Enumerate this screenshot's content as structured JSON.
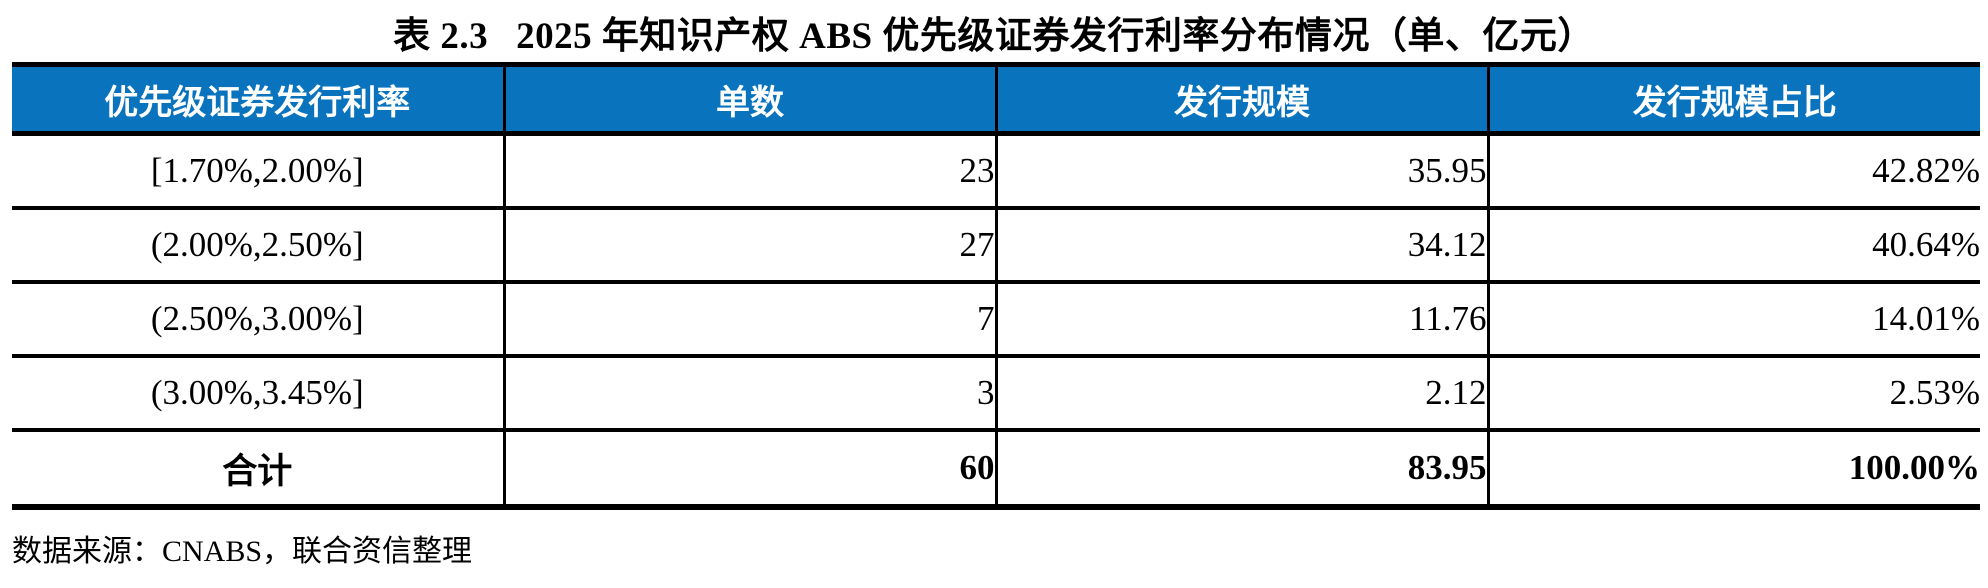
{
  "title": {
    "prefix": "表 2.3",
    "text": "2025 年知识产权 ABS 优先级证券发行利率分布情况（单、亿元）"
  },
  "colors": {
    "header_bg": "#0A73BE",
    "header_text": "#FFFFFF",
    "border": "#000000"
  },
  "table": {
    "columns": [
      "优先级证券发行利率",
      "单数",
      "发行规模",
      "发行规模占比"
    ],
    "rows": [
      {
        "range": "[1.70%,2.00%]",
        "count": "23",
        "scale": "35.95",
        "share": "42.82%"
      },
      {
        "range": "(2.00%,2.50%]",
        "count": "27",
        "scale": "34.12",
        "share": "40.64%"
      },
      {
        "range": "(2.50%,3.00%]",
        "count": "7",
        "scale": "11.76",
        "share": "14.01%"
      },
      {
        "range": "(3.00%,3.45%]",
        "count": "3",
        "scale": "2.12",
        "share": "2.53%"
      }
    ],
    "total": {
      "label": "合计",
      "count": "60",
      "scale": "83.95",
      "share": "100.00%"
    }
  },
  "footer": {
    "source": "数据来源：CNABS，联合资信整理"
  }
}
